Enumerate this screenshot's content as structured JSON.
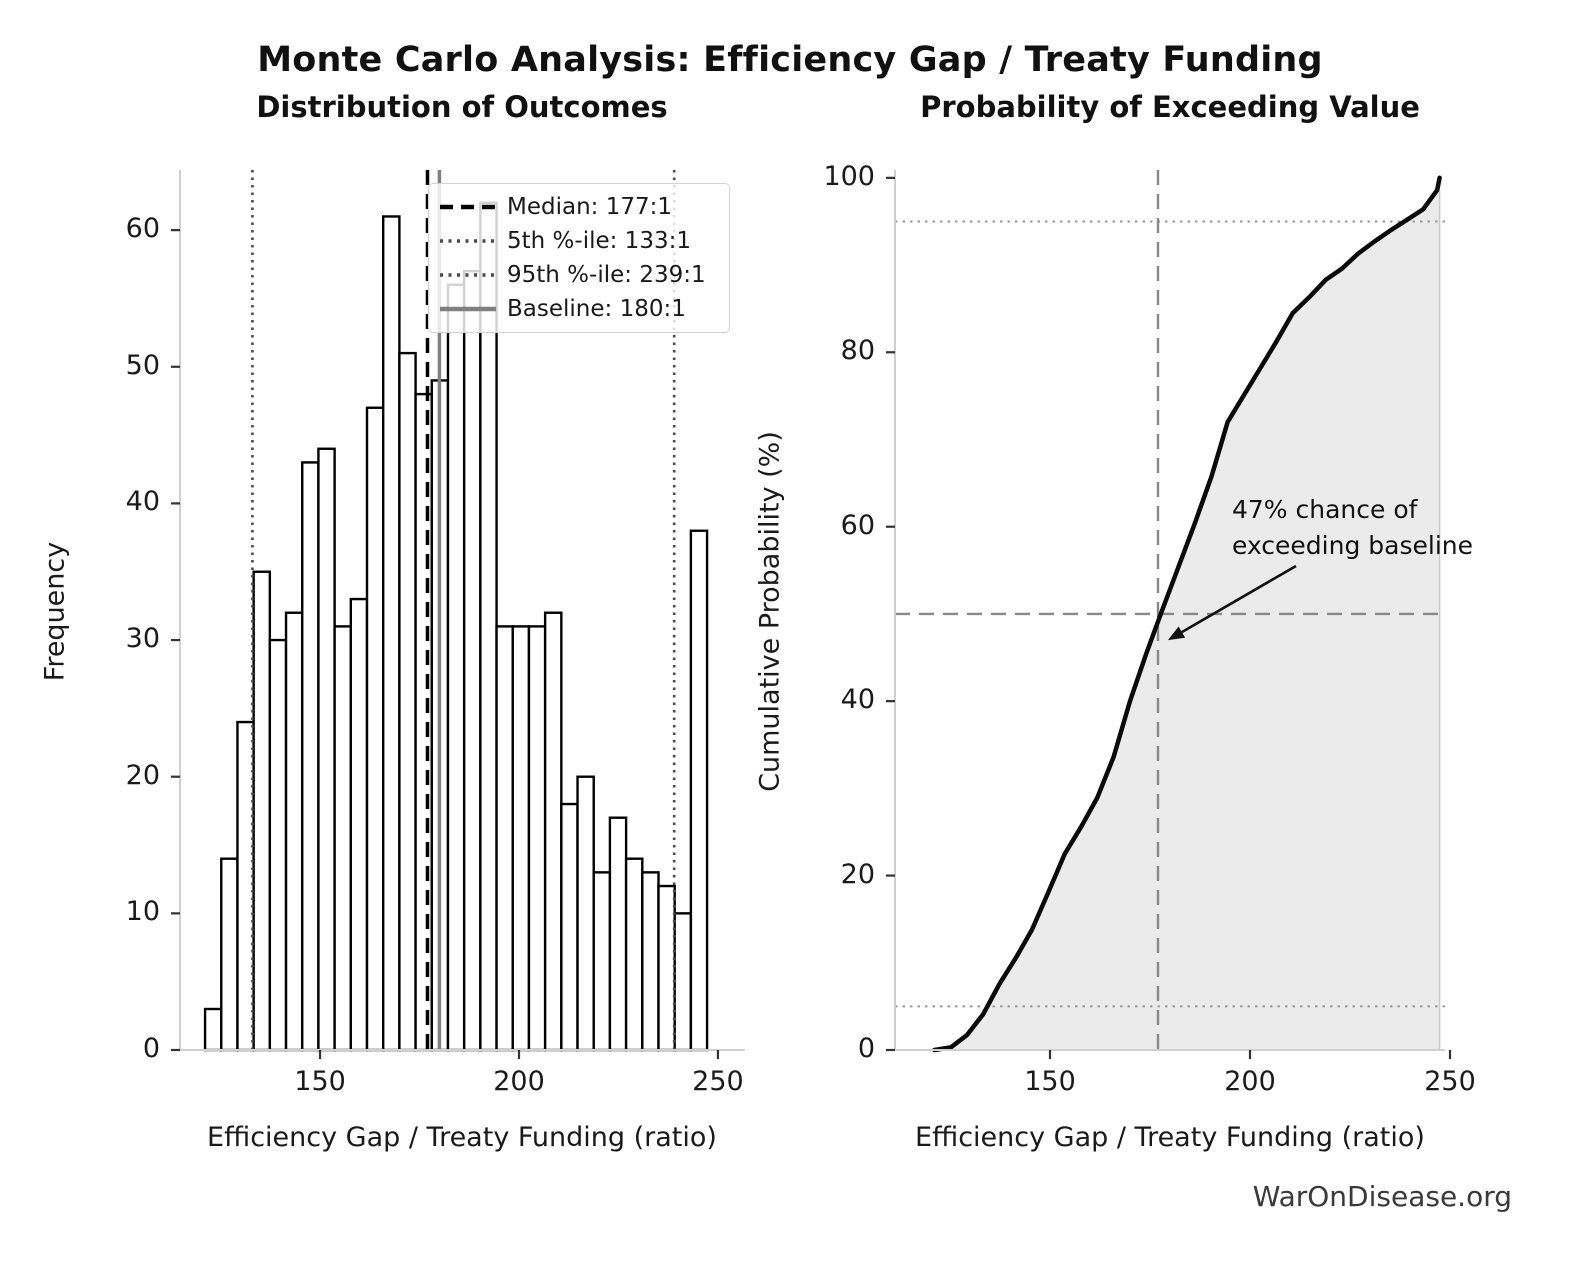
{
  "page_title": "Monte Carlo Analysis: Efficiency Gap / Treaty Funding",
  "footer": "WarOnDisease.org",
  "colors": {
    "bar_fill": "#ffffff",
    "bar_edge": "#000000",
    "curve": "#0a0a0a",
    "cdf_fill": "#e7e7e7",
    "percentile_line": "#4a4a4a",
    "baseline_line": "#808080",
    "guide_dashed": "#888888",
    "guide_dotted": "#999999",
    "spine": "#cfcfcf",
    "footer_text": "#3a3a3a"
  },
  "chart_data": [
    {
      "type": "bar",
      "title": "Distribution of Outcomes",
      "xlabel": "Efficiency Gap / Treaty Funding (ratio)",
      "ylabel": "Frequency",
      "bin_start": 121.1,
      "bin_width": 4.07,
      "frequencies": [
        3,
        14,
        24,
        35,
        30,
        32,
        43,
        44,
        31,
        33,
        47,
        61,
        51,
        48,
        49,
        56,
        57,
        62,
        31,
        31,
        31,
        32,
        18,
        20,
        13,
        17,
        14,
        13,
        12,
        10,
        38
      ],
      "x_domain": [
        114.8,
        256.8
      ],
      "y_domain": [
        0,
        64.4
      ],
      "x_ticks": [
        150,
        200,
        250
      ],
      "y_ticks": [
        0,
        10,
        20,
        30,
        40,
        50,
        60
      ],
      "vlines": [
        {
          "value": 177,
          "style": "dashed",
          "color": "#000000",
          "width": 3.5,
          "label": "Median: 177:1"
        },
        {
          "value": 133,
          "style": "dotted",
          "color": "#4a4a4a",
          "width": 2.6,
          "label": "5th %-ile: 133:1"
        },
        {
          "value": 239,
          "style": "dotted",
          "color": "#4a4a4a",
          "width": 2.6,
          "label": "95th %-ile: 239:1"
        },
        {
          "value": 180,
          "style": "solid",
          "color": "#808080",
          "width": 3.5,
          "label": "Baseline: 180:1"
        }
      ]
    },
    {
      "type": "line",
      "title": "Probability of Exceeding Value",
      "xlabel": "Efficiency Gap / Treaty Funding (ratio)",
      "ylabel": "Cumulative Probability (%)",
      "x_domain": [
        111.25,
        248.75
      ],
      "y_domain": [
        0,
        100.9
      ],
      "x_ticks": [
        150,
        200,
        250
      ],
      "y_ticks": [
        0,
        20,
        40,
        60,
        80,
        100
      ],
      "cdf": [
        [
          121.1,
          0
        ],
        [
          125.2,
          0.3
        ],
        [
          129.2,
          1.7
        ],
        [
          133.3,
          4.1
        ],
        [
          137.4,
          7.6
        ],
        [
          141.5,
          10.6
        ],
        [
          145.5,
          13.8
        ],
        [
          149.6,
          18.1
        ],
        [
          153.7,
          22.5
        ],
        [
          157.8,
          25.6
        ],
        [
          161.8,
          28.9
        ],
        [
          165.9,
          33.6
        ],
        [
          170.0,
          40.0
        ],
        [
          174.1,
          45.5
        ],
        [
          178.1,
          50.5
        ],
        [
          182.2,
          55.5
        ],
        [
          186.3,
          60.5
        ],
        [
          190.4,
          65.8
        ],
        [
          194.4,
          72.0
        ],
        [
          198.5,
          75.1
        ],
        [
          202.6,
          78.2
        ],
        [
          206.7,
          81.3
        ],
        [
          210.7,
          84.5
        ],
        [
          214.8,
          86.3
        ],
        [
          218.9,
          88.3
        ],
        [
          223.0,
          89.6
        ],
        [
          227.0,
          91.3
        ],
        [
          231.1,
          92.7
        ],
        [
          235.2,
          94.0
        ],
        [
          239.3,
          95.2
        ],
        [
          243.3,
          96.4
        ],
        [
          246.8,
          98.6
        ],
        [
          247.4,
          100
        ]
      ],
      "hlines": [
        {
          "value": 5,
          "style": "dotted",
          "color": "#999999",
          "width": 2.0
        },
        {
          "value": 50,
          "style": "dashed",
          "color": "#888888",
          "width": 2.4
        },
        {
          "value": 95,
          "style": "dotted",
          "color": "#999999",
          "width": 2.0
        }
      ],
      "vlines": [
        {
          "value": 177,
          "style": "dashed",
          "color": "#888888",
          "width": 2.4
        }
      ],
      "annotation": {
        "lines": [
          "47% chance of",
          "exceeding baseline"
        ],
        "arrow_from": [
          211.5,
          55.5
        ],
        "arrow_to": [
          179.5,
          47.0
        ]
      }
    }
  ]
}
